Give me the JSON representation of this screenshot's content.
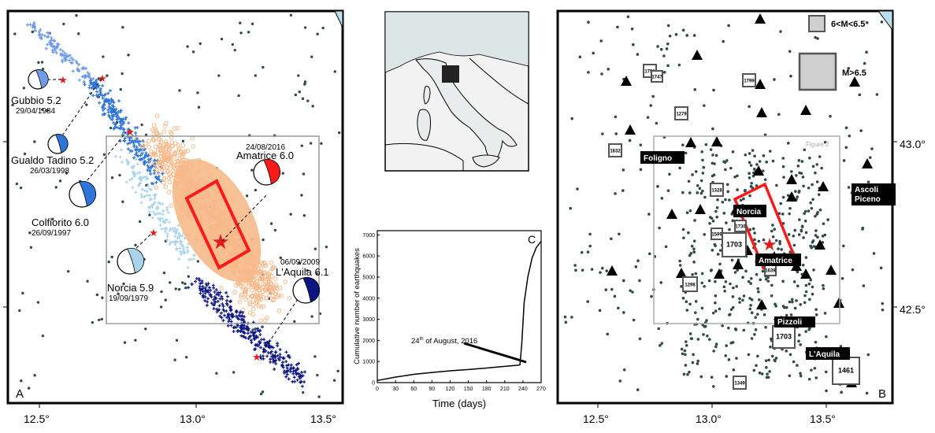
{
  "panel_a": {
    "letter": "A",
    "x_ticks": [
      "12.5°",
      "13.0°",
      "13.5°"
    ],
    "events": [
      {
        "name": "Gubbio 5.2",
        "date": "29/04/1984"
      },
      {
        "name": "Gualdo Tadino  5.2",
        "date": "26/03/1998"
      },
      {
        "name": "Colfiorito 6.0",
        "date": "26/09/1997"
      },
      {
        "name": "Norcia 5.9",
        "date": "19/09/1979"
      },
      {
        "name": "Amatrice 6.0",
        "date": "24/08/2016"
      },
      {
        "name": "L'Aquila 6.1",
        "date": "06/09/2009"
      }
    ],
    "colors": {
      "gubbio": "#6f9be8",
      "gualdo": "#2f74d8",
      "norcia": "#a9d3ea",
      "amatrice": "#ff1a1a",
      "laquila": "#0b1582",
      "aftershocks": "#f7b98a"
    }
  },
  "panel_c": {
    "letter": "C",
    "xlabel": "Time (days)",
    "ylabel": "Cumulative number of earthquakes",
    "annotation_day": "24",
    "annotation_sup": "th",
    "annotation_rest": " of August, 2016",
    "chart_data": {
      "type": "line",
      "x": [
        0,
        30,
        60,
        90,
        120,
        150,
        180,
        210,
        230,
        235,
        238,
        242,
        248,
        255,
        262,
        270
      ],
      "y": [
        100,
        260,
        390,
        480,
        560,
        620,
        690,
        770,
        820,
        840,
        1800,
        3800,
        5000,
        5900,
        6400,
        6700
      ],
      "xticks": [
        "0",
        "30",
        "60",
        "90",
        "120",
        "150",
        "180",
        "210",
        "240",
        "270"
      ],
      "yticks": [
        "0",
        "1000",
        "2000",
        "3000",
        "4000",
        "5000",
        "6000",
        "7000"
      ],
      "xlim": [
        0,
        270
      ],
      "ylim": [
        0,
        7200
      ]
    }
  },
  "panel_b": {
    "letter": "B",
    "x_ticks": [
      "12.5°",
      "13.0°",
      "13.5°"
    ],
    "y_ticks": [
      "43.0°",
      "42.5°"
    ],
    "legend_small": "6<M<6.5",
    "legend_large": "M>6.5",
    "figure_label": "Figure 2",
    "cities": [
      "Foligno",
      "Ascoli Piceno",
      "Norcia",
      "Amatrice",
      "Pizzoli",
      "L'Aquila"
    ],
    "years": [
      "1751",
      "1747",
      "1799",
      "1279",
      "1832",
      "1328",
      "1599",
      "1703",
      "1730",
      "1639",
      "1298",
      "1703",
      "1461",
      "1349"
    ]
  }
}
